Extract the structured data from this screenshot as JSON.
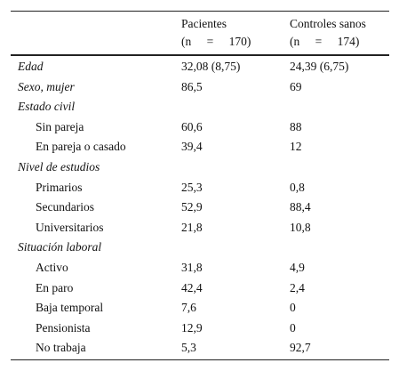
{
  "table": {
    "header": {
      "col1": "Pacientes",
      "col1_n": "(n = 170)",
      "col2": "Controles sanos",
      "col2_n": "(n = 174)"
    },
    "rows": [
      {
        "label": "Edad",
        "values": [
          "32,08 (8,75)",
          "24,39 (6,75)"
        ]
      },
      {
        "label": "Sexo, mujer",
        "values": [
          "86,5",
          "69"
        ]
      },
      {
        "label": "Estado civil",
        "items": [
          {
            "label": "Sin pareja",
            "values": [
              "60,6",
              "88"
            ]
          },
          {
            "label": "En pareja o casado",
            "values": [
              "39,4",
              "12"
            ]
          }
        ]
      },
      {
        "label": "Nivel de estudios",
        "items": [
          {
            "label": "Primarios",
            "values": [
              "25,3",
              "0,8"
            ]
          },
          {
            "label": "Secundarios",
            "values": [
              "52,9",
              "88,4"
            ]
          },
          {
            "label": "Universitarios",
            "values": [
              "21,8",
              "10,8"
            ]
          }
        ]
      },
      {
        "label": "Situación laboral",
        "items": [
          {
            "label": "Activo",
            "values": [
              "31,8",
              "4,9"
            ]
          },
          {
            "label": "En paro",
            "values": [
              "42,4",
              "2,4"
            ]
          },
          {
            "label": "Baja temporal",
            "values": [
              "7,6",
              "0"
            ]
          },
          {
            "label": "Pensionista",
            "values": [
              "12,9",
              "0"
            ]
          },
          {
            "label": "No trabaja",
            "values": [
              "5,3",
              "92,7"
            ]
          }
        ]
      }
    ]
  }
}
